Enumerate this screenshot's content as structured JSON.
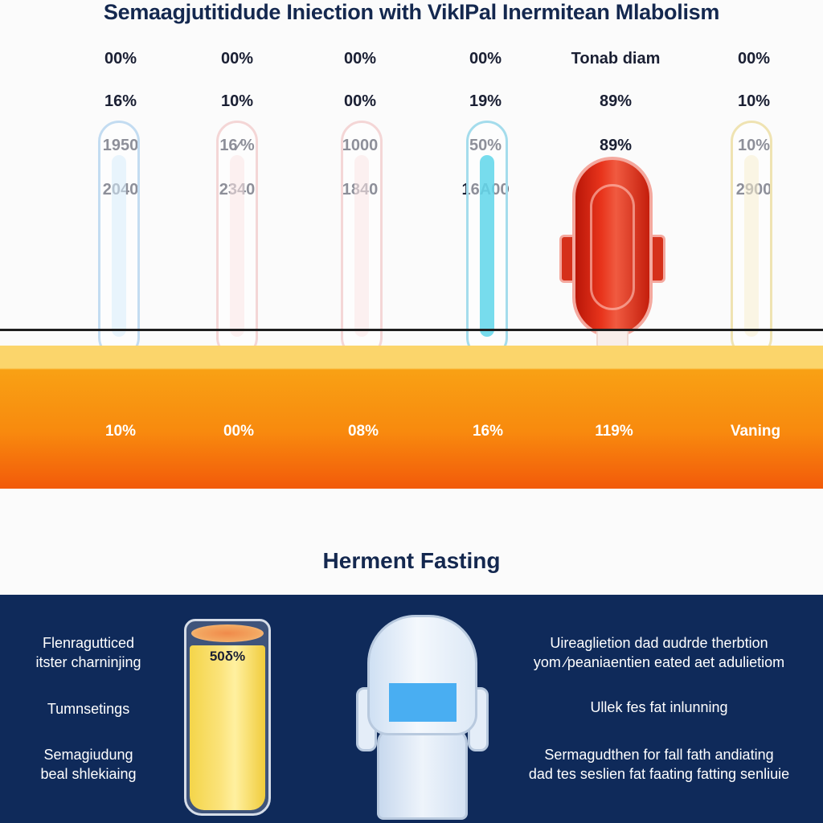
{
  "title": "Semaagjutitidude Iniection with VikIPal Inermitean Mlabolism",
  "columns": [
    {
      "row1": "00%",
      "row2": "16%",
      "row3": "1950",
      "row4": "2040",
      "band": "10%",
      "tube_color": "#bcd9f2",
      "fill_color": "#d7ecfb"
    },
    {
      "row1": "00%",
      "row2": "10%",
      "row3": "16⁄%",
      "row4": "2340",
      "band": "00%",
      "tube_color": "#f4d2d2",
      "fill_color": "#fbe6e6"
    },
    {
      "row1": "00%",
      "row2": "00%",
      "row3": "1000",
      "row4": "1840",
      "band": "08%",
      "tube_color": "#f4d2d2",
      "fill_color": "#fbe6e6"
    },
    {
      "row1": "00%",
      "row2": "19%",
      "row3": "50%",
      "row4": "16A00",
      "band": "16%",
      "tube_color": "#8fd8ea",
      "fill_color": "#5fd6ea"
    },
    {
      "row1": "Tonab diam",
      "row2": "89%",
      "row3": "89%",
      "row4": "",
      "band": "119%",
      "tube_color": "#e23a20",
      "fill_color": "#e23a20"
    },
    {
      "row1": "00%",
      "row2": "10%",
      "row3": "10%",
      "row4": "2900",
      "band": "Vaning",
      "tube_color": "#f1e6b8",
      "fill_color": "#f7efcf"
    }
  ],
  "subtitle": "Herment Fasting",
  "glass_pct": "50δ%",
  "left_items": [
    {
      "line1": "Flenragutticed",
      "line2": "itster charninjing"
    },
    {
      "line1": "Tumnsetings",
      "line2": ""
    },
    {
      "line1": "Semagiudung",
      "line2": "beal shlekiaing"
    }
  ],
  "right_items": [
    {
      "line1": "Uireaglietion dad ɑudrde therbtion",
      "line2": "yom ⁄peaniaentien eated aet adulietiom"
    },
    {
      "line1": "Ullek fes fat inlunning",
      "line2": ""
    },
    {
      "line1": "Sermagudthen for fall fath andiating",
      "line2": "dad tes seslien fat faating fatting senliuie"
    }
  ],
  "colors": {
    "navy": "#0f2a5a",
    "band_top": "#fbd56b",
    "band_bottom": "#f25a0a",
    "title": "#14284f"
  }
}
